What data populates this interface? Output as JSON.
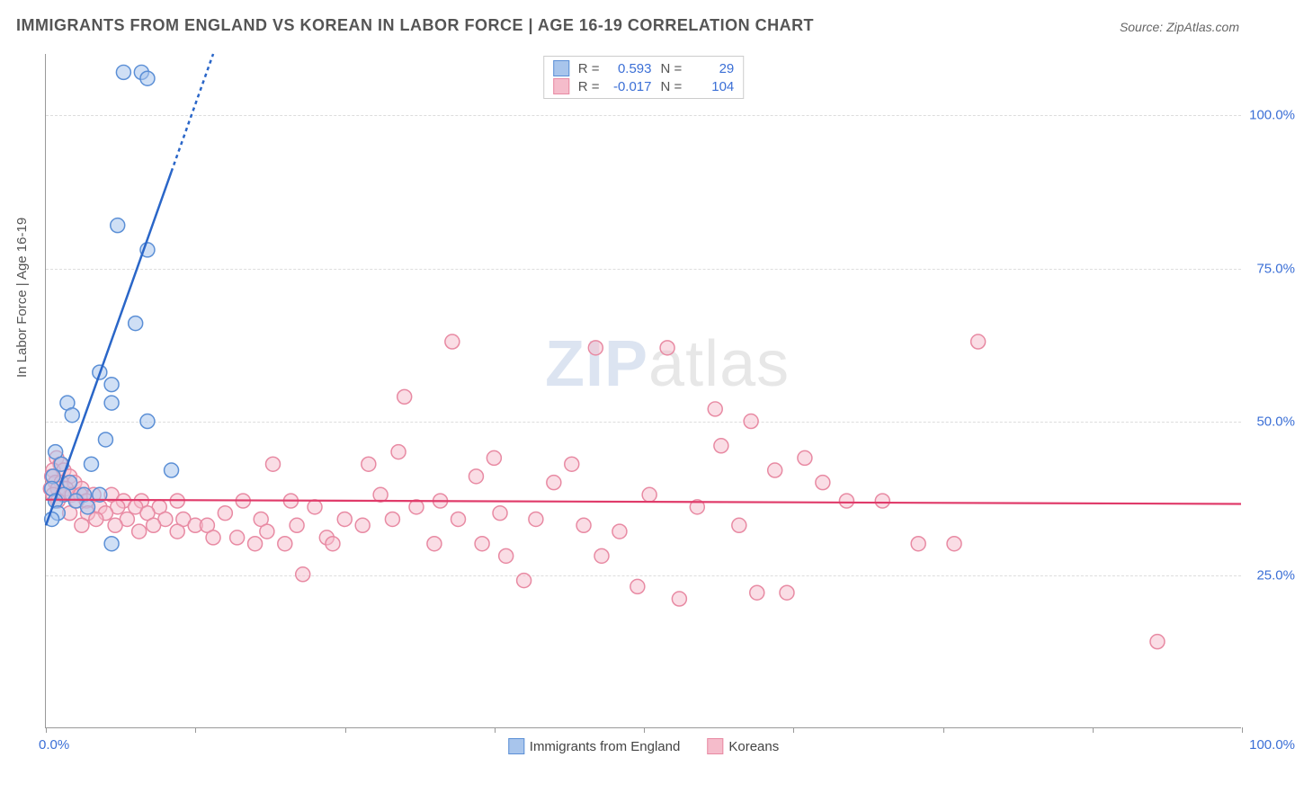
{
  "title": "IMMIGRANTS FROM ENGLAND VS KOREAN IN LABOR FORCE | AGE 16-19 CORRELATION CHART",
  "source_prefix": "Source: ",
  "source_name": "ZipAtlas.com",
  "yaxis_label": "In Labor Force | Age 16-19",
  "watermark_bold": "ZIP",
  "watermark_rest": "atlas",
  "chart": {
    "type": "scatter",
    "xlim": [
      0,
      100
    ],
    "ylim": [
      0,
      110
    ],
    "y_gridlines": [
      25,
      50,
      75,
      100
    ],
    "y_tick_labels": [
      "25.0%",
      "50.0%",
      "75.0%",
      "100.0%"
    ],
    "x_origin_label": "0.0%",
    "x_max_label": "100.0%",
    "x_ticks": [
      0,
      12.5,
      25,
      37.5,
      50,
      62.5,
      75,
      87.5,
      100
    ],
    "grid_color": "#dddddd",
    "axis_color": "#999999",
    "background_color": "#ffffff",
    "tick_label_color": "#3b6fd6",
    "tick_fontsize": 15,
    "title_fontsize": 18,
    "title_color": "#555555",
    "point_radius": 8,
    "point_stroke_width": 1.5,
    "series": [
      {
        "name": "Immigrants from England",
        "legend_label": "Immigrants from England",
        "fill": "#a8c5ec",
        "stroke": "#5b8fd6",
        "fill_opacity": 0.55,
        "line_color": "#2a66c8",
        "line_width": 2.5,
        "line_dash_extend": "4 4",
        "R_label": "R =",
        "R_value": "0.593",
        "N_label": "N =",
        "N_value": "29",
        "trend": {
          "x1": 0,
          "y1": 33,
          "x2": 14,
          "y2": 110,
          "dash_from_x": 10.5
        },
        "points": [
          {
            "x": 6.5,
            "y": 107
          },
          {
            "x": 8.0,
            "y": 107
          },
          {
            "x": 8.5,
            "y": 106
          },
          {
            "x": 6.0,
            "y": 82
          },
          {
            "x": 8.5,
            "y": 78
          },
          {
            "x": 7.5,
            "y": 66
          },
          {
            "x": 4.5,
            "y": 58
          },
          {
            "x": 5.5,
            "y": 56
          },
          {
            "x": 1.8,
            "y": 53
          },
          {
            "x": 5.5,
            "y": 53
          },
          {
            "x": 2.2,
            "y": 51
          },
          {
            "x": 8.5,
            "y": 50
          },
          {
            "x": 5.0,
            "y": 47
          },
          {
            "x": 0.8,
            "y": 45
          },
          {
            "x": 1.3,
            "y": 43
          },
          {
            "x": 3.8,
            "y": 43
          },
          {
            "x": 10.5,
            "y": 42
          },
          {
            "x": 0.6,
            "y": 41
          },
          {
            "x": 2.0,
            "y": 40
          },
          {
            "x": 0.5,
            "y": 39
          },
          {
            "x": 1.5,
            "y": 38
          },
          {
            "x": 3.2,
            "y": 38
          },
          {
            "x": 4.5,
            "y": 38
          },
          {
            "x": 0.8,
            "y": 37
          },
          {
            "x": 2.5,
            "y": 37
          },
          {
            "x": 1.0,
            "y": 35
          },
          {
            "x": 3.5,
            "y": 36
          },
          {
            "x": 0.5,
            "y": 34
          },
          {
            "x": 5.5,
            "y": 30
          }
        ]
      },
      {
        "name": "Koreans",
        "legend_label": "Koreans",
        "fill": "#f5bccb",
        "stroke": "#e88aa3",
        "fill_opacity": 0.5,
        "line_color": "#e03b6a",
        "line_width": 2.2,
        "R_label": "R =",
        "R_value": "-0.017",
        "N_label": "N =",
        "N_value": "104",
        "trend": {
          "x1": 0,
          "y1": 37.2,
          "x2": 100,
          "y2": 36.5
        },
        "points": [
          {
            "x": 0.9,
            "y": 44
          },
          {
            "x": 1.2,
            "y": 43
          },
          {
            "x": 0.6,
            "y": 42
          },
          {
            "x": 1.5,
            "y": 42
          },
          {
            "x": 0.5,
            "y": 41
          },
          {
            "x": 2.0,
            "y": 41
          },
          {
            "x": 0.8,
            "y": 40
          },
          {
            "x": 1.3,
            "y": 40
          },
          {
            "x": 2.4,
            "y": 40
          },
          {
            "x": 0.4,
            "y": 39
          },
          {
            "x": 1.0,
            "y": 39
          },
          {
            "x": 1.7,
            "y": 39
          },
          {
            "x": 3.0,
            "y": 39
          },
          {
            "x": 0.6,
            "y": 38
          },
          {
            "x": 1.4,
            "y": 38
          },
          {
            "x": 2.2,
            "y": 38
          },
          {
            "x": 2.9,
            "y": 38
          },
          {
            "x": 4.0,
            "y": 38
          },
          {
            "x": 5.5,
            "y": 38
          },
          {
            "x": 1.0,
            "y": 37
          },
          {
            "x": 2.6,
            "y": 37
          },
          {
            "x": 3.4,
            "y": 37
          },
          {
            "x": 6.5,
            "y": 37
          },
          {
            "x": 8.0,
            "y": 37
          },
          {
            "x": 9.5,
            "y": 36
          },
          {
            "x": 11.0,
            "y": 37
          },
          {
            "x": 4.5,
            "y": 36
          },
          {
            "x": 6.0,
            "y": 36
          },
          {
            "x": 7.5,
            "y": 36
          },
          {
            "x": 2.0,
            "y": 35
          },
          {
            "x": 3.5,
            "y": 35
          },
          {
            "x": 5.0,
            "y": 35
          },
          {
            "x": 8.5,
            "y": 35
          },
          {
            "x": 10.0,
            "y": 34
          },
          {
            "x": 11.5,
            "y": 34
          },
          {
            "x": 4.2,
            "y": 34
          },
          {
            "x": 6.8,
            "y": 34
          },
          {
            "x": 9.0,
            "y": 33
          },
          {
            "x": 12.5,
            "y": 33
          },
          {
            "x": 3.0,
            "y": 33
          },
          {
            "x": 5.8,
            "y": 33
          },
          {
            "x": 7.8,
            "y": 32
          },
          {
            "x": 11.0,
            "y": 32
          },
          {
            "x": 13.5,
            "y": 33
          },
          {
            "x": 15.0,
            "y": 35
          },
          {
            "x": 16.5,
            "y": 37
          },
          {
            "x": 18.0,
            "y": 34
          },
          {
            "x": 19.0,
            "y": 43
          },
          {
            "x": 20.5,
            "y": 37
          },
          {
            "x": 14.0,
            "y": 31
          },
          {
            "x": 16.0,
            "y": 31
          },
          {
            "x": 18.5,
            "y": 32
          },
          {
            "x": 21.0,
            "y": 33
          },
          {
            "x": 22.5,
            "y": 36
          },
          {
            "x": 17.5,
            "y": 30
          },
          {
            "x": 20.0,
            "y": 30
          },
          {
            "x": 23.5,
            "y": 31
          },
          {
            "x": 25.0,
            "y": 34
          },
          {
            "x": 21.5,
            "y": 25
          },
          {
            "x": 24.0,
            "y": 30
          },
          {
            "x": 26.5,
            "y": 33
          },
          {
            "x": 28.0,
            "y": 38
          },
          {
            "x": 29.5,
            "y": 45
          },
          {
            "x": 31.0,
            "y": 36
          },
          {
            "x": 30.0,
            "y": 54
          },
          {
            "x": 32.5,
            "y": 30
          },
          {
            "x": 33.0,
            "y": 37
          },
          {
            "x": 34.0,
            "y": 63
          },
          {
            "x": 34.5,
            "y": 34
          },
          {
            "x": 36.0,
            "y": 41
          },
          {
            "x": 37.5,
            "y": 44
          },
          {
            "x": 38.0,
            "y": 35
          },
          {
            "x": 27.0,
            "y": 43
          },
          {
            "x": 29.0,
            "y": 34
          },
          {
            "x": 36.5,
            "y": 30
          },
          {
            "x": 38.5,
            "y": 28
          },
          {
            "x": 40.0,
            "y": 24
          },
          {
            "x": 41.0,
            "y": 34
          },
          {
            "x": 42.5,
            "y": 40
          },
          {
            "x": 44.0,
            "y": 43
          },
          {
            "x": 45.0,
            "y": 33
          },
          {
            "x": 46.0,
            "y": 62
          },
          {
            "x": 46.5,
            "y": 28
          },
          {
            "x": 48.0,
            "y": 32
          },
          {
            "x": 49.5,
            "y": 23
          },
          {
            "x": 50.5,
            "y": 38
          },
          {
            "x": 52.0,
            "y": 62
          },
          {
            "x": 53.0,
            "y": 21
          },
          {
            "x": 54.5,
            "y": 36
          },
          {
            "x": 56.0,
            "y": 52
          },
          {
            "x": 56.5,
            "y": 46
          },
          {
            "x": 58.0,
            "y": 33
          },
          {
            "x": 59.0,
            "y": 50
          },
          {
            "x": 59.5,
            "y": 22
          },
          {
            "x": 61.0,
            "y": 42
          },
          {
            "x": 62.0,
            "y": 22
          },
          {
            "x": 63.5,
            "y": 44
          },
          {
            "x": 65.0,
            "y": 40
          },
          {
            "x": 67.0,
            "y": 37
          },
          {
            "x": 70.0,
            "y": 37
          },
          {
            "x": 73.0,
            "y": 30
          },
          {
            "x": 76.0,
            "y": 30
          },
          {
            "x": 78.0,
            "y": 63
          },
          {
            "x": 93.0,
            "y": 14
          }
        ]
      }
    ]
  }
}
